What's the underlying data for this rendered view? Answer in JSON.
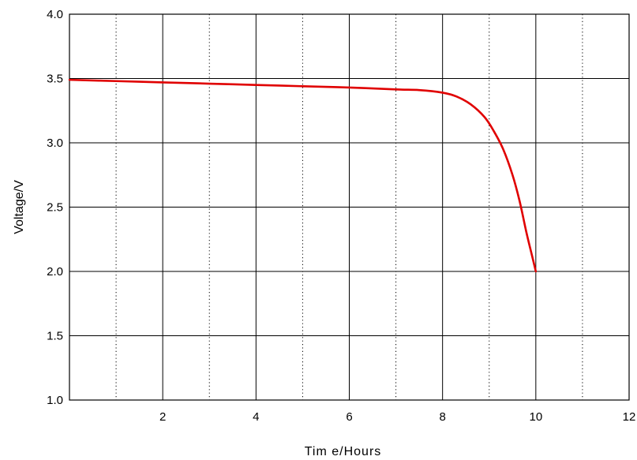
{
  "chart_data": {
    "type": "line",
    "title": "",
    "xlabel": "Tim e/Hours",
    "ylabel": "Voltage/V",
    "xlim": [
      0,
      12
    ],
    "ylim": [
      1.0,
      4.0
    ],
    "x_ticks": [
      2,
      4,
      6,
      8,
      10,
      12
    ],
    "y_ticks": [
      1.0,
      1.5,
      2.0,
      2.5,
      3.0,
      3.5,
      4.0
    ],
    "x_tick_labels": [
      "2",
      "4",
      "6",
      "8",
      "10",
      "12"
    ],
    "y_tick_labels": [
      "1.0",
      "1.5",
      "2.0",
      "2.5",
      "3.0",
      "3.5",
      "4.0"
    ],
    "grid": true,
    "minor_grid": "dotted",
    "series": [
      {
        "color": "#e00000",
        "x": [
          0,
          1,
          2,
          3,
          4,
          5,
          6,
          7,
          7.5,
          8,
          8.3,
          8.6,
          8.9,
          9.1,
          9.3,
          9.5,
          9.65,
          9.8,
          9.9,
          10.0
        ],
        "y": [
          3.49,
          3.48,
          3.47,
          3.46,
          3.45,
          3.44,
          3.43,
          3.415,
          3.41,
          3.39,
          3.36,
          3.3,
          3.2,
          3.09,
          2.95,
          2.75,
          2.55,
          2.3,
          2.15,
          2.0
        ]
      }
    ]
  }
}
